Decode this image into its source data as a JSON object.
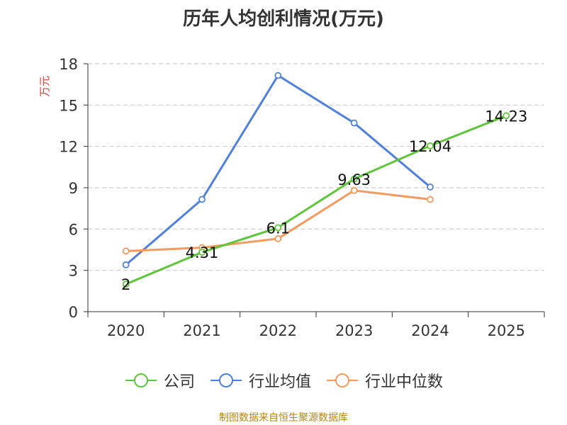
{
  "colors": {
    "公司": "#5fc53a",
    "行业均值": "#4f81dc",
    "行业中位数": "#f59a5e",
    "unit": "#e03a3a",
    "source": "#b8860b"
  },
  "source_note": "制图数据来自恒生聚源数据库",
  "chart_data": {
    "type": "line",
    "title": "历年人均创利情况(万元)",
    "ylabel": "万元",
    "xlabel": "",
    "categories": [
      "2020",
      "2021",
      "2022",
      "2023",
      "2024",
      "2025"
    ],
    "ylim": [
      0,
      18
    ],
    "yticks": [
      0,
      3,
      6,
      9,
      12,
      15,
      18
    ],
    "grid": "horizontal-dashed",
    "legend_position": "bottom",
    "series": [
      {
        "name": "公司",
        "values": [
          2,
          4.31,
          6.1,
          9.63,
          12.04,
          14.23
        ],
        "labels": [
          "2",
          "4.31",
          "6.1",
          "9.63",
          "12.04",
          "14.23"
        ]
      },
      {
        "name": "行业均值",
        "values": [
          3.4,
          8.15,
          17.15,
          13.7,
          9.05,
          null
        ]
      },
      {
        "name": "行业中位数",
        "values": [
          4.4,
          4.65,
          5.3,
          8.8,
          8.15,
          null
        ]
      }
    ]
  }
}
